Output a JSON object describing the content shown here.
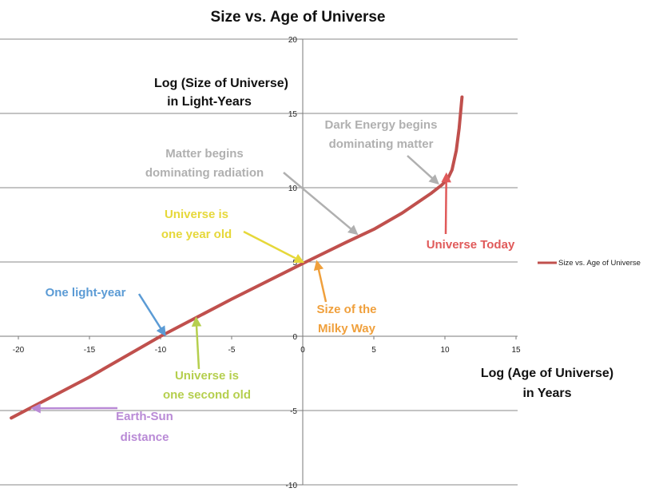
{
  "chart_data": {
    "type": "line",
    "title": "Size vs. Age of Universe",
    "xlabel": [
      "Log (Age of Universe)",
      "in Years"
    ],
    "ylabel": [
      "Log (Size of Universe)",
      "in Light-Years"
    ],
    "xlim": [
      -20.5,
      15
    ],
    "ylim": [
      -10,
      20
    ],
    "xticks": [
      -20,
      -15,
      -10,
      -5,
      0,
      5,
      10,
      15
    ],
    "yticks": [
      -10,
      -5,
      0,
      5,
      10,
      15,
      20
    ],
    "grid": "horizontal",
    "legend_position": "right",
    "series": [
      {
        "name": "Size vs. Age of Universe",
        "color": "#c0504d",
        "x": [
          -20.5,
          -15,
          -10,
          -5,
          0,
          3,
          5,
          7,
          9,
          9.8,
          10.2,
          10.5,
          10.8,
          11,
          11.2
        ],
        "y": [
          -5.5,
          -2.75,
          0,
          2.5,
          4.9,
          6.3,
          7.2,
          8.3,
          9.6,
          10.2,
          10.6,
          11.2,
          12.5,
          14,
          16.1
        ]
      }
    ],
    "annotations": [
      {
        "text": [
          "Dark Energy begins",
          "dominating matter"
        ],
        "color": "#b0b0b0",
        "target": [
          9.5,
          10.3
        ]
      },
      {
        "text": [
          "Matter begins",
          "dominating radiation"
        ],
        "color": "#b0b0b0",
        "target": [
          3.8,
          6.9
        ]
      },
      {
        "text": [
          "Universe is",
          "one year old"
        ],
        "color": "#e6d83a",
        "target": [
          0,
          5
        ]
      },
      {
        "text": [
          "Universe Today"
        ],
        "color": "#e05a5a",
        "target": [
          10.1,
          10.9
        ]
      },
      {
        "text": [
          "One light-year"
        ],
        "color": "#5b9bd5",
        "target": [
          -9.7,
          0.1
        ]
      },
      {
        "text": [
          "Size of the",
          "Milky Way"
        ],
        "color": "#f0a03c",
        "target": [
          1,
          5
        ]
      },
      {
        "text": [
          "Universe is",
          "one second old"
        ],
        "color": "#b5cf4e",
        "target": [
          -7.5,
          1.2
        ]
      },
      {
        "text": [
          "Earth-Sun",
          "distance"
        ],
        "color": "#b98ad6",
        "target": [
          -19,
          -4.85
        ]
      }
    ]
  }
}
